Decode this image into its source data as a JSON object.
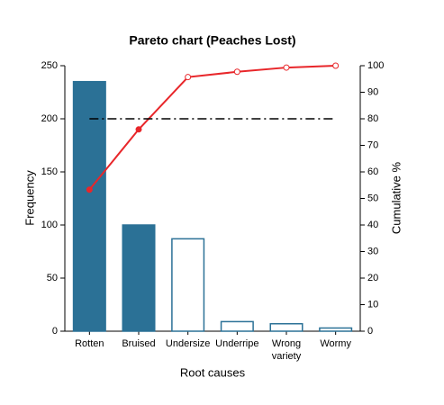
{
  "chart_data": {
    "type": "pareto",
    "title": "Pareto chart (Peaches Lost)",
    "xlabel": "Root causes",
    "ylabel": "Frequency",
    "y2label": "Cumulative %",
    "categories": [
      "Rotten",
      "Bruised",
      "Undersize",
      "Underripe",
      "Wrong variety",
      "Wormy"
    ],
    "series": [
      {
        "type": "bar",
        "color": "#2b7196",
        "values": [
          235,
          100,
          87,
          9,
          7,
          3
        ],
        "filled": [
          true,
          true,
          false,
          false,
          false,
          false
        ]
      },
      {
        "type": "line",
        "axis": "y2",
        "color": "#e8262a",
        "values": [
          53.3,
          76.0,
          95.7,
          97.7,
          99.3,
          100
        ],
        "marker_filled": [
          true,
          true,
          false,
          false,
          false,
          false
        ]
      }
    ],
    "reference_line": {
      "axis": "y2",
      "value": 80,
      "color": "#000000",
      "style": "dash-dot"
    },
    "ylim": [
      0,
      250
    ],
    "yticks": [
      0,
      50,
      100,
      150,
      200,
      250
    ],
    "y2lim": [
      0,
      100
    ],
    "y2ticks": [
      0,
      10,
      20,
      30,
      40,
      50,
      60,
      70,
      80,
      90,
      100
    ]
  }
}
